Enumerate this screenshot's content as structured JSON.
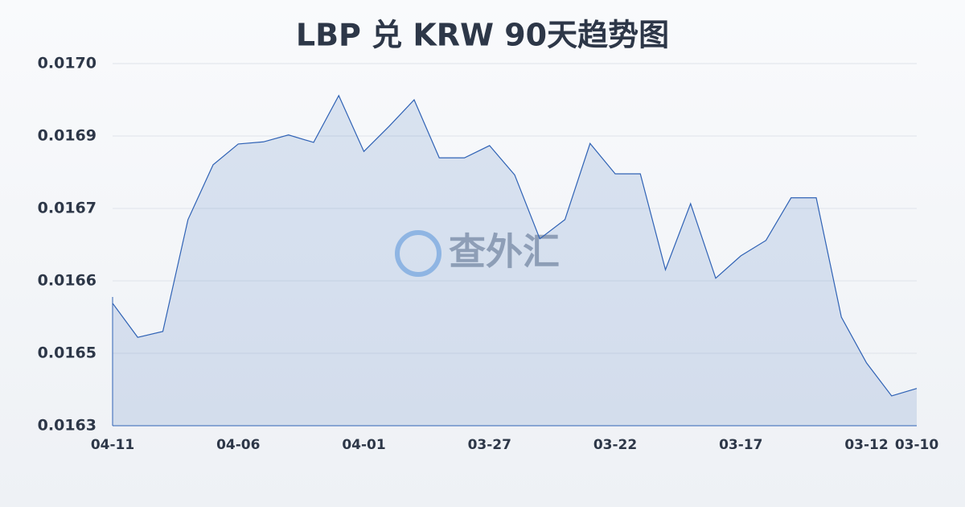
{
  "chart_data": {
    "type": "area",
    "title": "LBP 兑 KRW 90天趋势图",
    "watermark": "查外汇",
    "categories": [
      "04-11",
      null,
      null,
      null,
      null,
      "04-06",
      null,
      null,
      null,
      null,
      "04-01",
      null,
      null,
      null,
      null,
      "03-27",
      null,
      null,
      null,
      null,
      "03-22",
      null,
      null,
      null,
      null,
      "03-17",
      null,
      null,
      null,
      null,
      "03-12",
      null,
      "03-10"
    ],
    "values": [
      0.01655,
      0.016486,
      0.016497,
      0.016707,
      0.01681,
      0.016849,
      0.016853,
      0.016866,
      0.016852,
      0.01694,
      0.016835,
      0.016882,
      0.016932,
      0.016823,
      0.016823,
      0.016846,
      0.016791,
      0.016671,
      0.016707,
      0.01685,
      0.016793,
      0.016793,
      0.016613,
      0.016737,
      0.016597,
      0.016639,
      0.016668,
      0.016748,
      0.016748,
      0.016524,
      0.016438,
      0.016376,
      0.01639
    ],
    "color": "#2f62b5",
    "ylim": [
      0.01632,
      0.017
    ],
    "yticks": [
      {
        "value": 0.01632,
        "label": "0.0163"
      },
      {
        "value": 0.016456,
        "label": "0.0165"
      },
      {
        "value": 0.016592,
        "label": "0.0166"
      },
      {
        "value": 0.016728,
        "label": "0.0167"
      },
      {
        "value": 0.016864,
        "label": "0.0169"
      },
      {
        "value": 0.017,
        "label": "0.0170"
      }
    ],
    "grid": true
  }
}
